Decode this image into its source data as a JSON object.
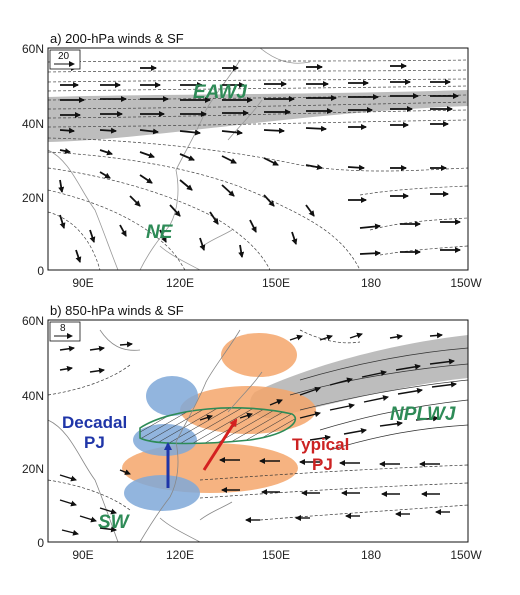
{
  "panel_a": {
    "title": "a) 200-hPa winds & SF",
    "ref_vector": "20",
    "labels": {
      "jet": "EAWJ",
      "flow": "NE"
    },
    "y_ticks": [
      "60N",
      "40N",
      "20N",
      "0"
    ],
    "x_ticks": [
      "90E",
      "120E",
      "150E",
      "180",
      "150W"
    ]
  },
  "panel_b": {
    "title": "b) 850-hPa winds & SF",
    "ref_vector": "8",
    "labels": {
      "jet": "NPLWJ",
      "flow": "SW",
      "decadal_1": "Decadal",
      "decadal_2": "PJ",
      "typical_1": "Typical",
      "typical_2": "PJ"
    },
    "y_ticks": [
      "60N",
      "40N",
      "20N",
      "0"
    ],
    "x_ticks": [
      "90E",
      "120E",
      "150E",
      "180",
      "150W"
    ]
  },
  "colors": {
    "jet_shading": "#bdbdbd",
    "decadal_pj": "#7fa8d8",
    "typical_pj": "#f4a66b",
    "label_green": "#2e8b57",
    "label_blue": "#1f35a8",
    "label_red": "#cc2222"
  }
}
